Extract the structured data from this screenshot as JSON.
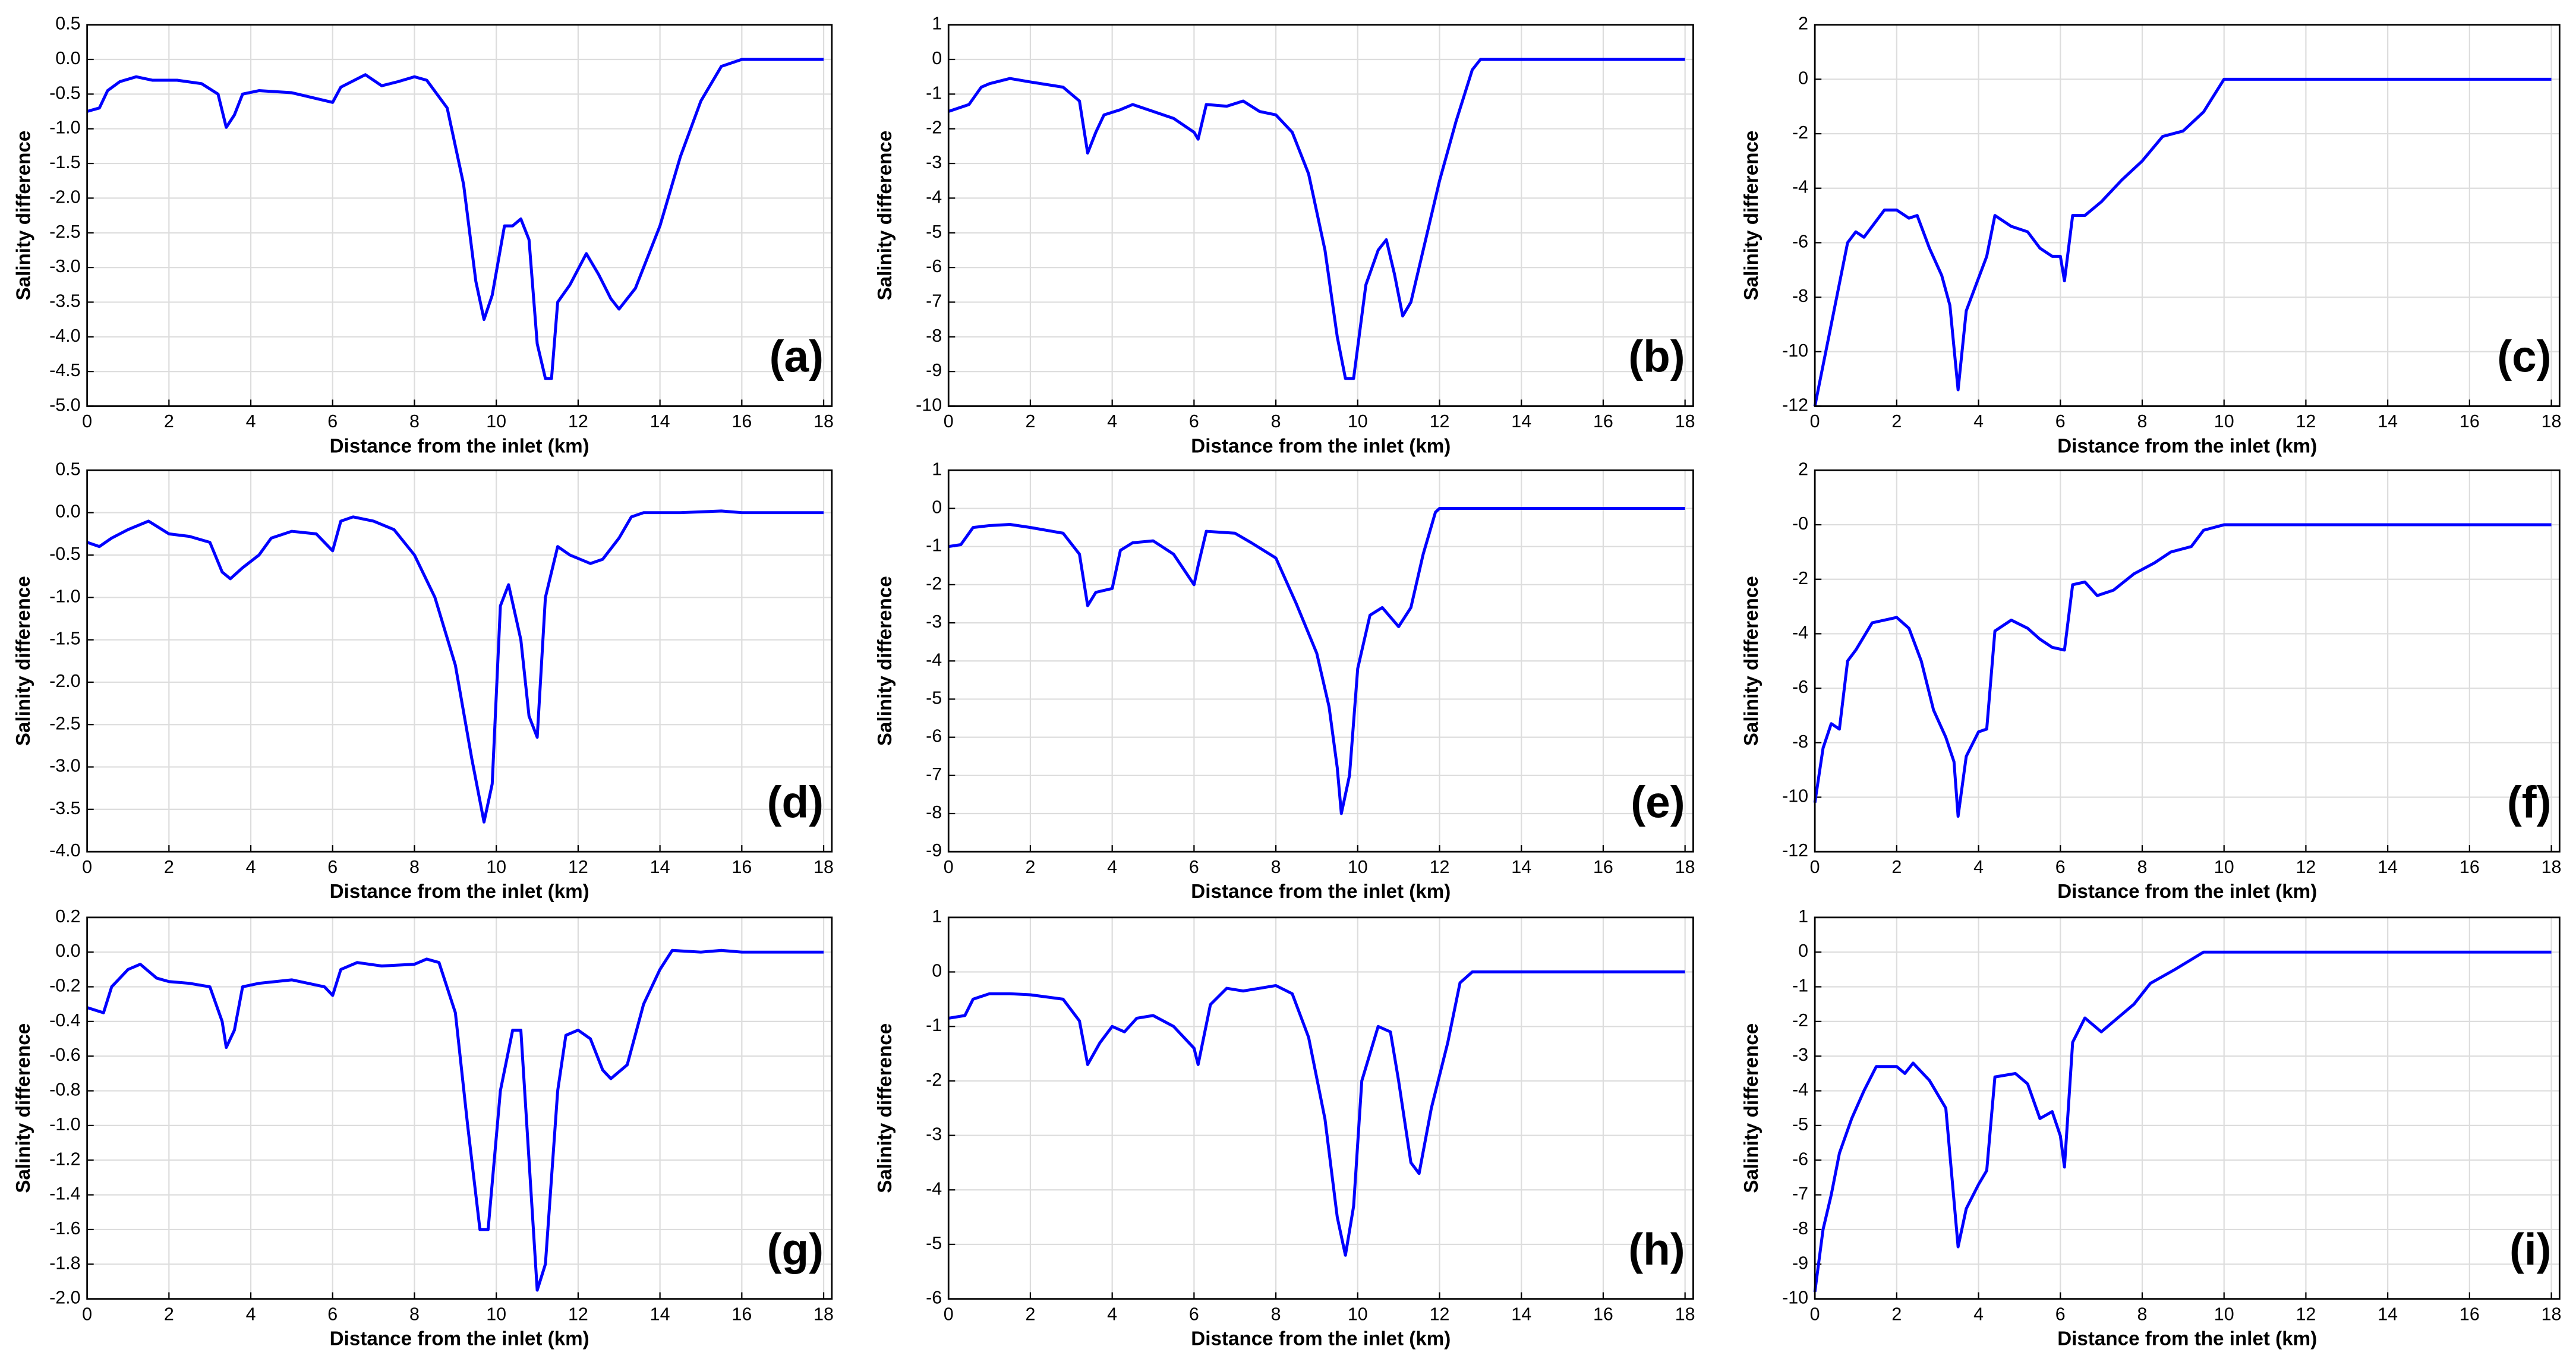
{
  "chart_data": [
    {
      "type": "line",
      "label": "(a)",
      "xlabel": "Distance from the inlet (km)",
      "ylabel": "Salinity difference",
      "color": "#0000ff",
      "grid": true,
      "xlim": [
        0,
        18.2
      ],
      "ylim": [
        -5,
        0.5
      ],
      "xticks": [
        0,
        2,
        4,
        6,
        8,
        10,
        12,
        14,
        16,
        18
      ],
      "yticks": [
        {
          "value": -5,
          "label": "-5.0"
        },
        -4.5,
        {
          "value": -4,
          "label": "-4.0"
        },
        -3.5,
        {
          "value": -3,
          "label": "-3.0"
        },
        -2.5,
        {
          "value": -2,
          "label": "-2.0"
        },
        -1.5,
        {
          "value": -1,
          "label": "-1.0"
        },
        -0.5,
        {
          "value": 0,
          "label": "0.0"
        },
        0.5
      ],
      "x": [
        0,
        0.3,
        0.5,
        0.8,
        1.2,
        1.6,
        2.2,
        2.8,
        3.2,
        3.4,
        3.6,
        3.8,
        4.2,
        5,
        5.5,
        6,
        6.2,
        6.8,
        7.2,
        7.6,
        8,
        8.3,
        8.8,
        9.2,
        9.5,
        9.7,
        9.9,
        10.2,
        10.4,
        10.6,
        10.8,
        11,
        11.2,
        11.35,
        11.5,
        11.8,
        12.2,
        12.5,
        12.8,
        13,
        13.4,
        14,
        14.5,
        15,
        15.5,
        16,
        18
      ],
      "values": [
        -0.75,
        -0.7,
        -0.45,
        -0.32,
        -0.25,
        -0.3,
        -0.3,
        -0.35,
        -0.5,
        -0.98,
        -0.8,
        -0.5,
        -0.45,
        -0.48,
        -0.55,
        -0.62,
        -0.4,
        -0.22,
        -0.38,
        -0.32,
        -0.25,
        -0.3,
        -0.7,
        -1.8,
        -3.2,
        -3.75,
        -3.4,
        -2.4,
        -2.4,
        -2.3,
        -2.6,
        -4.1,
        -4.6,
        -4.6,
        -3.5,
        -3.25,
        -2.8,
        -3.1,
        -3.45,
        -3.6,
        -3.3,
        -2.4,
        -1.4,
        -0.6,
        -0.1,
        0,
        0
      ]
    },
    {
      "type": "line",
      "label": "(b)",
      "xlabel": "Distance from the inlet (km)",
      "ylabel": "Salinity difference",
      "color": "#0000ff",
      "grid": true,
      "xlim": [
        0,
        18.2
      ],
      "ylim": [
        -10,
        1
      ],
      "xticks": [
        0,
        2,
        4,
        6,
        8,
        10,
        12,
        14,
        16,
        18
      ],
      "yticks": [
        -10,
        -9,
        -8,
        -7,
        -6,
        -5,
        -4,
        -3,
        -2,
        -1,
        0,
        1
      ],
      "x": [
        0,
        0.5,
        0.8,
        1,
        1.5,
        2,
        2.8,
        3.2,
        3.4,
        3.6,
        3.8,
        4.2,
        4.5,
        5,
        5.5,
        6,
        6.1,
        6.3,
        6.8,
        7.2,
        7.6,
        8,
        8.4,
        8.8,
        9.2,
        9.5,
        9.7,
        9.9,
        10.2,
        10.5,
        10.7,
        10.9,
        11.1,
        11.3,
        11.6,
        12,
        12.4,
        12.8,
        13,
        18
      ],
      "values": [
        -1.5,
        -1.3,
        -0.8,
        -0.7,
        -0.55,
        -0.65,
        -0.8,
        -1.2,
        -2.7,
        -2.1,
        -1.6,
        -1.45,
        -1.3,
        -1.5,
        -1.7,
        -2.1,
        -2.3,
        -1.3,
        -1.35,
        -1.2,
        -1.5,
        -1.6,
        -2.1,
        -3.3,
        -5.5,
        -8,
        -9.2,
        -9.2,
        -6.5,
        -5.5,
        -5.2,
        -6.2,
        -7.4,
        -7,
        -5.5,
        -3.5,
        -1.8,
        -0.3,
        0,
        0
      ]
    },
    {
      "type": "line",
      "label": "(c)",
      "xlabel": "Distance from the inlet (km)",
      "ylabel": "Salinity difference",
      "color": "#0000ff",
      "grid": true,
      "xlim": [
        0,
        18.2
      ],
      "ylim": [
        -12,
        2
      ],
      "xticks": [
        0,
        2,
        4,
        6,
        8,
        10,
        12,
        14,
        16,
        18
      ],
      "yticks": [
        -12,
        -10,
        -8,
        -6,
        -4,
        -2,
        0,
        2
      ],
      "x": [
        0,
        0.2,
        0.4,
        0.6,
        0.8,
        1,
        1.2,
        1.5,
        1.7,
        2,
        2.3,
        2.5,
        2.8,
        3.1,
        3.3,
        3.5,
        3.7,
        4,
        4.2,
        4.4,
        4.8,
        5.2,
        5.5,
        5.8,
        6,
        6.1,
        6.3,
        6.6,
        7,
        7.5,
        8,
        8.5,
        9,
        9.5,
        10,
        18
      ],
      "values": [
        -12,
        -10.5,
        -9,
        -7.5,
        -6,
        -5.6,
        -5.8,
        -5.2,
        -4.8,
        -4.8,
        -5.1,
        -5,
        -6.2,
        -7.2,
        -8.3,
        -11.4,
        -8.5,
        -7.3,
        -6.5,
        -5,
        -5.4,
        -5.6,
        -6.2,
        -6.5,
        -6.5,
        -7.4,
        -5,
        -5,
        -4.5,
        -3.7,
        -3,
        -2.1,
        -1.9,
        -1.2,
        0,
        0
      ]
    },
    {
      "type": "line",
      "label": "(d)",
      "xlabel": "Distance from the inlet (km)",
      "ylabel": "Salinity difference",
      "color": "#0000ff",
      "grid": true,
      "xlim": [
        0,
        18.2
      ],
      "ylim": [
        -4,
        0.5
      ],
      "xticks": [
        0,
        2,
        4,
        6,
        8,
        10,
        12,
        14,
        16,
        18
      ],
      "yticks": [
        {
          "value": -4,
          "label": "-4.0"
        },
        -3.5,
        {
          "value": -3,
          "label": "-3.0"
        },
        -2.5,
        {
          "value": -2,
          "label": "-2.0"
        },
        -1.5,
        {
          "value": -1,
          "label": "-1.0"
        },
        -0.5,
        {
          "value": 0,
          "label": "0.0"
        },
        0.5
      ],
      "x": [
        0,
        0.3,
        0.6,
        1,
        1.5,
        2,
        2.5,
        3,
        3.3,
        3.5,
        3.8,
        4.2,
        4.5,
        5,
        5.6,
        6,
        6.2,
        6.5,
        7,
        7.5,
        8,
        8.5,
        9,
        9.4,
        9.7,
        9.9,
        10.1,
        10.3,
        10.6,
        10.8,
        11,
        11.2,
        11.5,
        11.8,
        12.3,
        12.6,
        13,
        13.3,
        13.6,
        14.5,
        15.5,
        16,
        18
      ],
      "values": [
        -0.35,
        -0.4,
        -0.3,
        -0.2,
        -0.1,
        -0.25,
        -0.28,
        -0.35,
        -0.7,
        -0.78,
        -0.65,
        -0.5,
        -0.3,
        -0.22,
        -0.25,
        -0.45,
        -0.1,
        -0.05,
        -0.1,
        -0.2,
        -0.5,
        -1,
        -1.8,
        -2.9,
        -3.65,
        -3.2,
        -1.1,
        -0.85,
        -1.5,
        -2.4,
        -2.65,
        -1,
        -0.4,
        -0.5,
        -0.6,
        -0.55,
        -0.3,
        -0.05,
        0,
        0,
        0.02,
        0,
        0
      ]
    },
    {
      "type": "line",
      "label": "(e)",
      "xlabel": "Distance from the inlet (km)",
      "ylabel": "Salinity difference",
      "color": "#0000ff",
      "grid": true,
      "xlim": [
        0,
        18.2
      ],
      "ylim": [
        -9,
        1
      ],
      "xticks": [
        0,
        2,
        4,
        6,
        8,
        10,
        12,
        14,
        16,
        18
      ],
      "yticks": [
        -9,
        -8,
        -7,
        -6,
        -5,
        -4,
        -3,
        -2,
        -1,
        0,
        1
      ],
      "x": [
        0,
        0.3,
        0.6,
        1,
        1.5,
        2,
        2.8,
        3.2,
        3.4,
        3.6,
        4,
        4.2,
        4.5,
        5,
        5.5,
        6,
        6.1,
        6.3,
        7,
        7.4,
        8,
        8.5,
        9,
        9.3,
        9.5,
        9.6,
        9.8,
        10,
        10.3,
        10.6,
        11,
        11.3,
        11.6,
        11.9,
        12,
        18
      ],
      "values": [
        -1,
        -0.95,
        -0.5,
        -0.45,
        -0.42,
        -0.5,
        -0.65,
        -1.2,
        -2.55,
        -2.2,
        -2.1,
        -1.1,
        -0.9,
        -0.85,
        -1.2,
        -2,
        -1.5,
        -0.6,
        -0.65,
        -0.9,
        -1.3,
        -2.5,
        -3.8,
        -5.2,
        -6.8,
        -8,
        -7,
        -4.2,
        -2.8,
        -2.6,
        -3.1,
        -2.6,
        -1.2,
        -0.1,
        0,
        0
      ]
    },
    {
      "type": "line",
      "label": "(f)",
      "xlabel": "Distance from the inlet (km)",
      "ylabel": "Salinity difference",
      "color": "#0000ff",
      "grid": true,
      "xlim": [
        0,
        18.2
      ],
      "ylim": [
        -12,
        2
      ],
      "xticks": [
        0,
        2,
        4,
        6,
        8,
        10,
        12,
        14,
        16,
        18
      ],
      "yticks": [
        -12,
        -10,
        -8,
        -6,
        -4,
        -2,
        {
          "value": 0,
          "label": "-0"
        },
        2
      ],
      "x": [
        0,
        0.2,
        0.4,
        0.6,
        0.8,
        1,
        1.4,
        1.7,
        2,
        2.3,
        2.6,
        2.9,
        3.2,
        3.4,
        3.5,
        3.7,
        4,
        4.2,
        4.4,
        4.8,
        5.2,
        5.5,
        5.8,
        6.1,
        6.3,
        6.6,
        6.9,
        7.3,
        7.8,
        8.3,
        8.7,
        9.2,
        9.5,
        10,
        18
      ],
      "values": [
        -10.2,
        -8.2,
        -7.3,
        -7.5,
        -5,
        -4.6,
        -3.6,
        -3.5,
        -3.4,
        -3.8,
        -5,
        -6.8,
        -7.8,
        -8.7,
        -10.7,
        -8.5,
        -7.6,
        -7.5,
        -3.9,
        -3.5,
        -3.8,
        -4.2,
        -4.5,
        -4.6,
        -2.2,
        -2.1,
        -2.6,
        -2.4,
        -1.8,
        -1.4,
        -1,
        -0.8,
        -0.2,
        0,
        0
      ]
    },
    {
      "type": "line",
      "label": "(g)",
      "xlabel": "Distance from the inlet (km)",
      "ylabel": "Salinity difference",
      "color": "#0000ff",
      "grid": true,
      "xlim": [
        0,
        18.2
      ],
      "ylim": [
        -2,
        0.2
      ],
      "xticks": [
        0,
        2,
        4,
        6,
        8,
        10,
        12,
        14,
        16,
        18
      ],
      "yticks": [
        {
          "value": -2,
          "label": "-2.0"
        },
        -1.8,
        -1.6,
        -1.4,
        -1.2,
        {
          "value": -1,
          "label": "-1.0"
        },
        -0.8,
        -0.6,
        -0.4,
        -0.2,
        {
          "value": 0,
          "label": "0.0"
        },
        0.2
      ],
      "x": [
        0,
        0.4,
        0.6,
        1,
        1.3,
        1.7,
        2,
        2.5,
        3,
        3.3,
        3.4,
        3.6,
        3.8,
        4.2,
        5,
        5.8,
        6,
        6.2,
        6.6,
        7.2,
        8,
        8.3,
        8.6,
        9,
        9.3,
        9.6,
        9.8,
        10.1,
        10.4,
        10.6,
        10.8,
        11,
        11.2,
        11.5,
        11.7,
        12,
        12.3,
        12.6,
        12.8,
        13.2,
        13.6,
        14,
        14.3,
        15,
        15.5,
        16,
        18
      ],
      "values": [
        -0.32,
        -0.35,
        -0.2,
        -0.1,
        -0.07,
        -0.15,
        -0.17,
        -0.18,
        -0.2,
        -0.4,
        -0.55,
        -0.45,
        -0.2,
        -0.18,
        -0.16,
        -0.2,
        -0.25,
        -0.1,
        -0.06,
        -0.08,
        -0.07,
        -0.04,
        -0.06,
        -0.35,
        -1,
        -1.6,
        -1.6,
        -0.8,
        -0.45,
        -0.45,
        -1.2,
        -1.95,
        -1.8,
        -0.8,
        -0.48,
        -0.45,
        -0.5,
        -0.68,
        -0.73,
        -0.65,
        -0.3,
        -0.1,
        0.01,
        0,
        0.01,
        0,
        0
      ]
    },
    {
      "type": "line",
      "label": "(h)",
      "xlabel": "Distance from the inlet (km)",
      "ylabel": "Salinity difference",
      "color": "#0000ff",
      "grid": true,
      "xlim": [
        0,
        18.2
      ],
      "ylim": [
        -6,
        1
      ],
      "xticks": [
        0,
        2,
        4,
        6,
        8,
        10,
        12,
        14,
        16,
        18
      ],
      "yticks": [
        -6,
        -5,
        -4,
        -3,
        -2,
        -1,
        0,
        1
      ],
      "x": [
        0,
        0.4,
        0.6,
        1,
        1.5,
        2,
        2.8,
        3.2,
        3.4,
        3.7,
        4,
        4.3,
        4.6,
        5,
        5.5,
        6,
        6.1,
        6.4,
        6.8,
        7.2,
        7.6,
        8,
        8.4,
        8.8,
        9.2,
        9.5,
        9.7,
        9.9,
        10.1,
        10.5,
        10.8,
        11,
        11.3,
        11.5,
        11.8,
        12.2,
        12.5,
        12.8,
        18
      ],
      "values": [
        -0.85,
        -0.8,
        -0.5,
        -0.4,
        -0.4,
        -0.42,
        -0.5,
        -0.9,
        -1.7,
        -1.3,
        -1,
        -1.1,
        -0.85,
        -0.8,
        -1,
        -1.4,
        -1.7,
        -0.6,
        -0.3,
        -0.35,
        -0.3,
        -0.25,
        -0.4,
        -1.2,
        -2.7,
        -4.5,
        -5.2,
        -4.3,
        -2,
        -1,
        -1.1,
        -2,
        -3.5,
        -3.7,
        -2.5,
        -1.3,
        -0.2,
        0,
        0
      ]
    },
    {
      "type": "line",
      "label": "(i)",
      "xlabel": "Distance from the inlet (km)",
      "ylabel": "Salinity difference",
      "color": "#0000ff",
      "grid": true,
      "xlim": [
        0,
        18.2
      ],
      "ylim": [
        -10,
        1
      ],
      "xticks": [
        0,
        2,
        4,
        6,
        8,
        10,
        12,
        14,
        16,
        18
      ],
      "yticks": [
        -10,
        -9,
        -8,
        -7,
        -6,
        -5,
        -4,
        -3,
        -2,
        -1,
        0,
        1
      ],
      "x": [
        0,
        0.2,
        0.4,
        0.6,
        0.9,
        1.2,
        1.5,
        2,
        2.2,
        2.4,
        2.8,
        3.2,
        3.5,
        3.7,
        4,
        4.2,
        4.4,
        4.9,
        5.2,
        5.5,
        5.8,
        6,
        6.1,
        6.3,
        6.6,
        7,
        7.4,
        7.8,
        8.2,
        8.8,
        9.5,
        18
      ],
      "values": [
        -9.8,
        -8,
        -7,
        -5.8,
        -4.8,
        -4,
        -3.3,
        -3.3,
        -3.5,
        -3.2,
        -3.7,
        -4.5,
        -8.5,
        -7.4,
        -6.7,
        -6.3,
        -3.6,
        -3.5,
        -3.8,
        -4.8,
        -4.6,
        -5.3,
        -6.2,
        -2.6,
        -1.9,
        -2.3,
        -1.9,
        -1.5,
        -0.9,
        -0.5,
        0,
        0
      ]
    }
  ]
}
